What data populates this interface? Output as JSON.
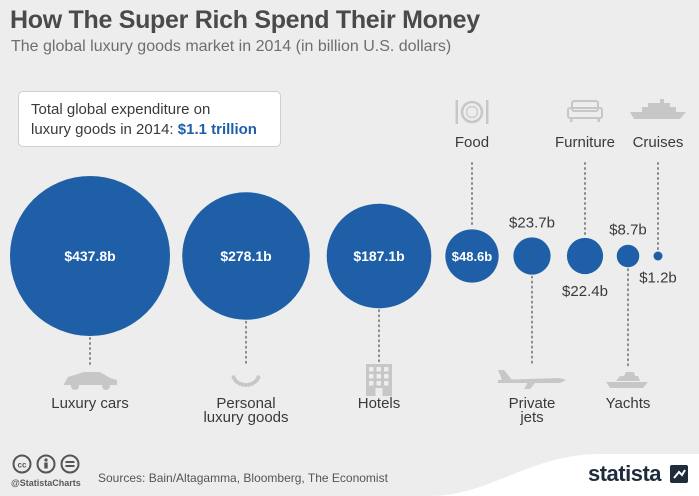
{
  "title": "How The Super Rich Spend Their Money",
  "subtitle": "The global luxury goods market in 2014 (in billion U.S. dollars)",
  "total_box": {
    "line1": "Total global expenditure on",
    "line2_prefix": "luxury goods in 2014: ",
    "value": "$1.1 trillion"
  },
  "colors": {
    "bubble": "#1f5fa8",
    "accent": "#1f5fa8",
    "background": "#ededed",
    "text": "#3a3a3a",
    "icon": "#c7c7c7"
  },
  "chart_data": {
    "type": "bubble",
    "title": "How The Super Rich Spend Their Money",
    "subtitle": "The global luxury goods market in 2014 (in billion U.S. dollars)",
    "unit": "billion U.S. dollars",
    "categories": [
      "Luxury cars",
      "Personal luxury goods",
      "Hotels",
      "Food",
      "Private jets",
      "Furniture",
      "Yachts",
      "Cruises"
    ],
    "values": [
      437.8,
      278.1,
      187.1,
      48.6,
      23.7,
      22.4,
      8.7,
      1.2
    ],
    "value_labels": [
      "$437.8b",
      "$278.1b",
      "$187.1b",
      "$48.6b",
      "$23.7b",
      "$22.4b",
      "$8.7b",
      "$1.2b"
    ],
    "label_lines": [
      [
        "Luxury cars"
      ],
      [
        "Personal",
        "luxury goods"
      ],
      [
        "Hotels"
      ],
      [
        "Food"
      ],
      [
        "Private",
        "jets"
      ],
      [
        "Furniture"
      ],
      [
        "Yachts"
      ],
      [
        "Cruises"
      ]
    ],
    "label_side": [
      "bottom",
      "bottom",
      "bottom",
      "top",
      "bottom",
      "top",
      "bottom",
      "top"
    ],
    "value_label_placement": [
      "inside",
      "inside",
      "inside",
      "inside",
      "above",
      "below",
      "above",
      "below"
    ],
    "icons": [
      "sports-car-icon",
      "necklace-icon",
      "hotel-building-icon",
      "plate-cutlery-icon",
      "private-jet-icon",
      "sofa-icon",
      "yacht-icon",
      "cruise-ship-icon"
    ],
    "total": "$1.1 trillion"
  },
  "footer": {
    "handle": "@StatistaCharts",
    "sources": "Sources: Bain/Altagamma, Bloomberg, The Economist",
    "brand": "statista",
    "license_icons": [
      "cc-icon",
      "by-icon",
      "nd-icon"
    ]
  }
}
